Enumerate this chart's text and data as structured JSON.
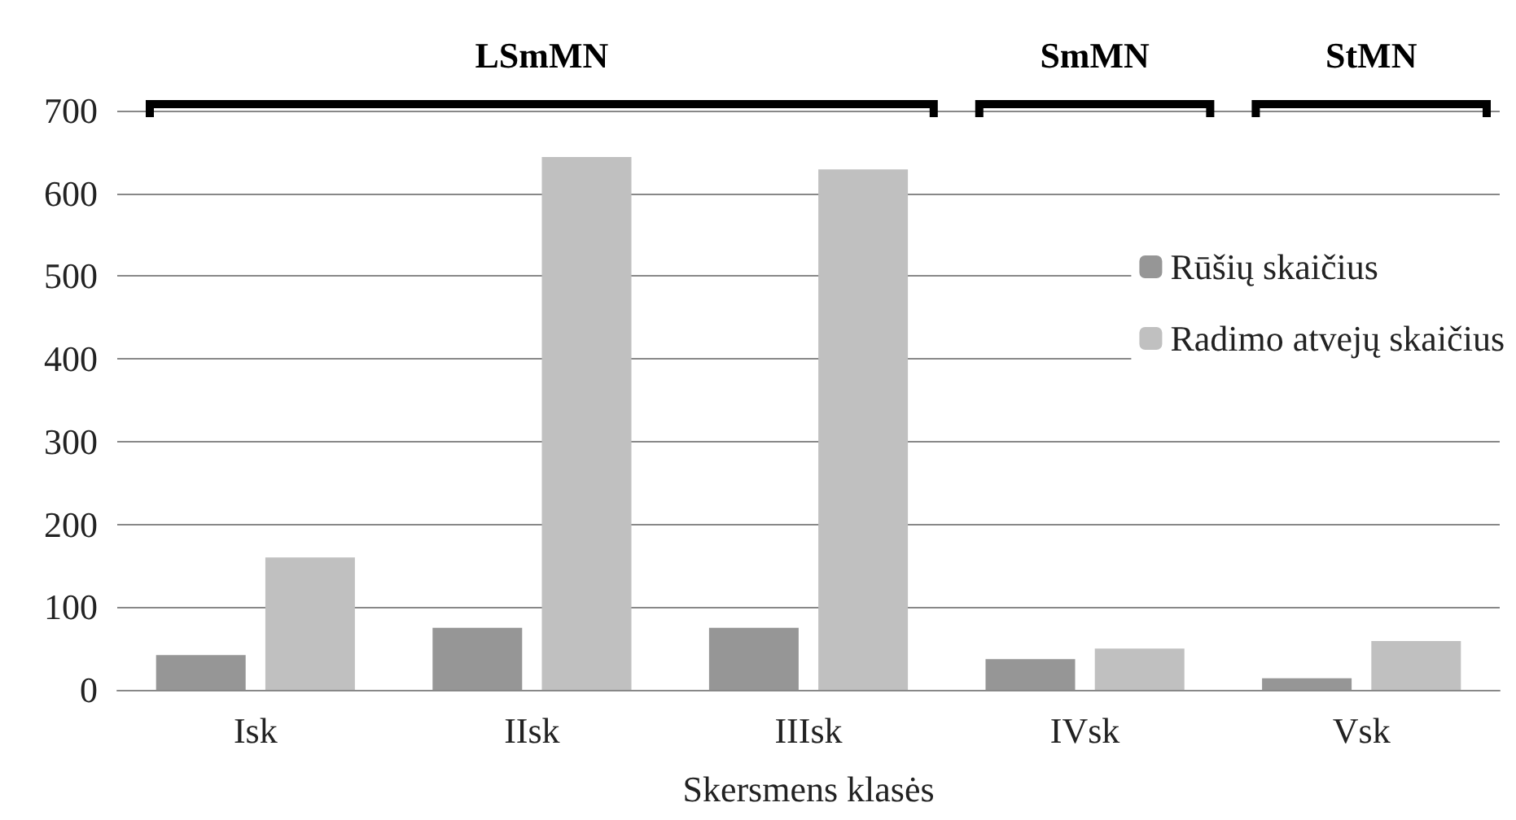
{
  "chart_data": {
    "type": "bar",
    "xlabel": "Skersmens klasės",
    "categories": [
      "Isk",
      "IIsk",
      "IIIsk",
      "IVsk",
      "Vsk"
    ],
    "series": [
      {
        "name": "Rūšių skaičius",
        "color": "#969696",
        "values": [
          42,
          75,
          75,
          37,
          14
        ]
      },
      {
        "name": "Radimo atvejų skaičius",
        "color": "#c0c0c0",
        "values": [
          160,
          644,
          629,
          50,
          59
        ]
      }
    ],
    "ylim": [
      0,
      700
    ],
    "yticks": [
      0,
      100,
      200,
      300,
      400,
      500,
      600,
      700
    ],
    "grid": "y",
    "legend": "right",
    "annotations": [
      "LSmMN",
      "SmMN",
      "StMN"
    ]
  }
}
